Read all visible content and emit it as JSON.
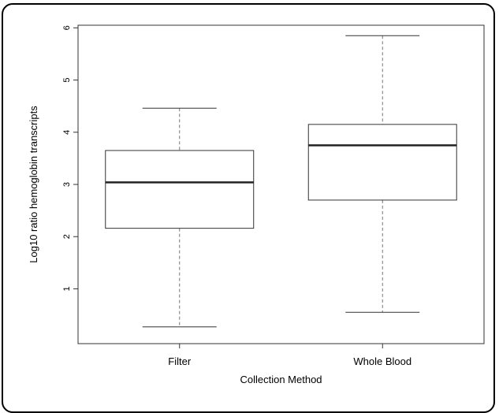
{
  "chart_data": {
    "type": "box",
    "title": "",
    "xlabel": "Collection Method",
    "ylabel": "Log10 ratio hemoglobin transcripts",
    "ylim": [
      -0.05,
      6.05
    ],
    "yticks": [
      1,
      2,
      3,
      4,
      5,
      6
    ],
    "grid": false,
    "categories": [
      "Filter",
      "Whole Blood"
    ],
    "boxes": [
      {
        "category": "Filter",
        "min": 0.27,
        "q1": 2.16,
        "median": 3.04,
        "q3": 3.65,
        "max": 4.46
      },
      {
        "category": "Whole Blood",
        "min": 0.55,
        "q1": 2.7,
        "median": 3.75,
        "q3": 4.15,
        "max": 5.85
      }
    ],
    "colors": {
      "box_stroke": "#333333",
      "whisker": "#777777",
      "axis": "#333333"
    }
  }
}
